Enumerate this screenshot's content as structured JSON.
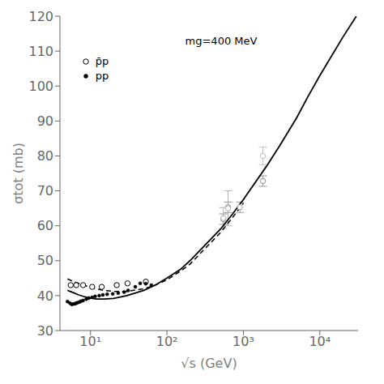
{
  "chart_data": {
    "type": "scatter",
    "annotation": "mg=400 MeV",
    "x_label": "√s (GeV)",
    "y_label": "σtot (mb)",
    "log": "x",
    "grid": false,
    "legend": "upper left",
    "xlim": [
      3.981071705534972,
      31622.776601683792
    ],
    "xticks": [
      {
        "value": 10,
        "label": "10¹"
      },
      {
        "value": 100,
        "label": "10²"
      },
      {
        "value": 1000,
        "label": "10³"
      },
      {
        "value": 10000,
        "label": "10⁴"
      }
    ],
    "ylim": [
      30,
      120
    ],
    "yticks": [
      30,
      40,
      50,
      60,
      70,
      80,
      90,
      100,
      110,
      120
    ],
    "series": [
      {
        "type": "line",
        "line_style": "solid",
        "color": "#000000",
        "x": [
          5,
          6,
          7,
          8,
          9,
          10,
          12,
          15,
          20,
          30,
          50,
          70,
          100,
          150,
          200,
          300,
          500,
          700,
          1000,
          2000,
          3000,
          5000,
          7000,
          10000,
          20000,
          30000
        ],
        "values": [
          41.5,
          40.8,
          40.2,
          39.8,
          39.5,
          39.3,
          39.0,
          39.0,
          39.2,
          40.0,
          41.5,
          43.0,
          45.0,
          47.5,
          50.0,
          54.0,
          59.0,
          63.0,
          67.5,
          77.0,
          83.0,
          91.0,
          97.0,
          103.0,
          114.0,
          120.0
        ]
      },
      {
        "type": "line",
        "line_style": "dashed",
        "color": "#000000",
        "x": [
          5,
          6,
          7,
          8,
          9,
          10,
          12,
          15,
          20,
          30,
          50,
          70,
          100,
          150,
          200,
          300,
          500,
          700,
          1000
        ],
        "values": [
          44.8,
          44.0,
          43.5,
          43.0,
          42.7,
          42.4,
          41.9,
          41.5,
          41.2,
          41.2,
          42.0,
          43.0,
          44.5,
          47.0,
          49.0,
          53.0,
          58.0,
          62.0,
          66.5
        ]
      },
      {
        "type": "scatter",
        "name": "p̄p",
        "marker": "circle",
        "color": "#000000",
        "x": [
          5.5,
          6.5,
          8.0,
          10.5,
          14.0,
          22.0,
          30.5,
          53.0
        ],
        "values": [
          43.0,
          43.0,
          43.0,
          42.5,
          42.5,
          43.0,
          43.5,
          44.0
        ]
      },
      {
        "type": "scatter",
        "name": "pp",
        "marker": "disc",
        "color": "#000000",
        "x": [
          5.0,
          5.4,
          5.7,
          6.0,
          6.3,
          6.5,
          6.8,
          7.2,
          7.5,
          8.0,
          8.8,
          9.5,
          10.5,
          11.5,
          13.0,
          14.5,
          16.5,
          19.5,
          23.0,
          27.5,
          31.0,
          38.5,
          44.7,
          52.8,
          62.5
        ],
        "values": [
          38.3,
          37.8,
          37.5,
          37.6,
          37.7,
          37.8,
          38.0,
          38.2,
          38.4,
          38.6,
          39.0,
          39.3,
          39.5,
          39.8,
          40.0,
          40.2,
          40.4,
          40.5,
          40.7,
          41.0,
          41.5,
          42.5,
          43.5,
          43.4,
          43.0
        ]
      },
      {
        "type": "scatter",
        "marker": "circle",
        "color": "#888888",
        "x": [
          546.0,
          630.0,
          1800.0
        ],
        "values": [
          61.9,
          65.3,
          72.8
        ],
        "error": [
          1.5,
          1.5,
          1.5
        ]
      },
      {
        "type": "scatter",
        "marker": "circle",
        "color": "#aaaaaa",
        "x": [
          546.0,
          630.0
        ],
        "values": [
          62.2,
          65.0
        ],
        "error": [
          3.0,
          5.0
        ]
      },
      {
        "type": "scatter",
        "marker": "circle",
        "color": "#999999",
        "x": [
          900.0
        ],
        "values": [
          65.3
        ],
        "error": [
          1.5
        ]
      },
      {
        "type": "scatter",
        "marker": "circle",
        "color": "#bbbbbb",
        "x": [
          1800.0
        ],
        "values": [
          80.0
        ],
        "error": [
          2.5
        ]
      }
    ]
  }
}
